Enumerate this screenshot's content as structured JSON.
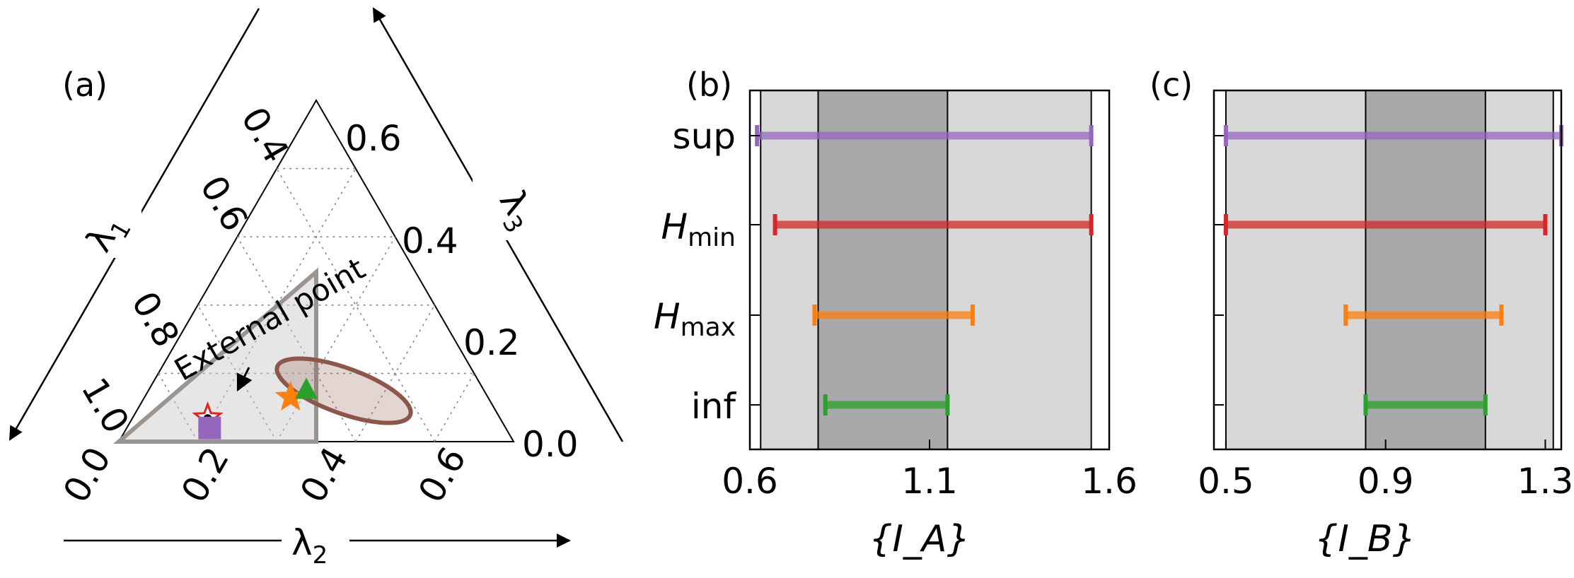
{
  "chart_data": [
    {
      "type": "ternary",
      "panel_label": "(a)",
      "axes": {
        "left": {
          "label": "λ",
          "sub": "1",
          "ticks": [
            "0.4",
            "0.6",
            "0.8",
            "1.0"
          ]
        },
        "right": {
          "label": "λ",
          "sub": "3",
          "ticks": [
            "0.6",
            "0.4",
            "0.2",
            "0.0"
          ]
        },
        "bottom": {
          "label": "λ",
          "sub": "2",
          "ticks": [
            "0.0",
            "0.2",
            "0.4",
            "0.6"
          ]
        }
      },
      "annotation": "External point",
      "points": [
        {
          "name": "star-red",
          "lambda2": 0.19,
          "lambda3": 0.07,
          "color": "#d62728"
        },
        {
          "name": "square-purple",
          "lambda2": 0.21,
          "lambda3": 0.04,
          "color": "#9467bd"
        },
        {
          "name": "star-orange",
          "lambda2": 0.37,
          "lambda3": 0.13,
          "color": "#ff7f0e"
        },
        {
          "name": "triangle-green",
          "lambda2": 0.4,
          "lambda3": 0.15,
          "color": "#2ca02c"
        }
      ],
      "colors": {
        "region": "#9a9590",
        "ellipse": "#8c564b"
      }
    },
    {
      "type": "interval",
      "panel_label": "(b)",
      "xlabel": "{I_A}",
      "xlabel_color": "#8c6a52",
      "xlim": [
        0.6,
        1.6
      ],
      "xticks": [
        "0.6",
        "1.1",
        "1.6"
      ],
      "light_band": [
        0.63,
        1.55
      ],
      "dark_band": [
        0.79,
        1.15
      ],
      "categories": [
        "sup",
        "Hmin",
        "Hmax",
        "inf"
      ],
      "category_labels": [
        {
          "main": "sup",
          "sub": ""
        },
        {
          "main": "H",
          "sub": "min"
        },
        {
          "main": "H",
          "sub": "max"
        },
        {
          "main": "inf",
          "sub": ""
        }
      ],
      "series": [
        {
          "category": "sup",
          "low": 0.62,
          "high": 1.55,
          "color": "#9467bd"
        },
        {
          "category": "Hmin",
          "low": 0.67,
          "high": 1.55,
          "color": "#d62728"
        },
        {
          "category": "Hmax",
          "low": 0.78,
          "high": 1.22,
          "color": "#ff7f0e"
        },
        {
          "category": "inf",
          "low": 0.81,
          "high": 1.15,
          "color": "#2ca02c"
        }
      ]
    },
    {
      "type": "interval",
      "panel_label": "(c)",
      "xlabel": "{I_B}",
      "xlabel_color": "#2f9a8e",
      "xlim": [
        0.47,
        1.34
      ],
      "xticks": [
        "0.5",
        "0.9",
        "1.3"
      ],
      "light_band": [
        0.5,
        1.32
      ],
      "dark_band": [
        0.85,
        1.15
      ],
      "categories": [
        "sup",
        "Hmin",
        "Hmax",
        "inf"
      ],
      "series": [
        {
          "category": "sup",
          "low": 0.5,
          "high": 1.34,
          "color": "#9467bd"
        },
        {
          "category": "Hmin",
          "low": 0.5,
          "high": 1.3,
          "color": "#d62728"
        },
        {
          "category": "Hmax",
          "low": 0.8,
          "high": 1.19,
          "color": "#ff7f0e"
        },
        {
          "category": "inf",
          "low": 0.85,
          "high": 1.15,
          "color": "#2ca02c"
        }
      ]
    }
  ]
}
